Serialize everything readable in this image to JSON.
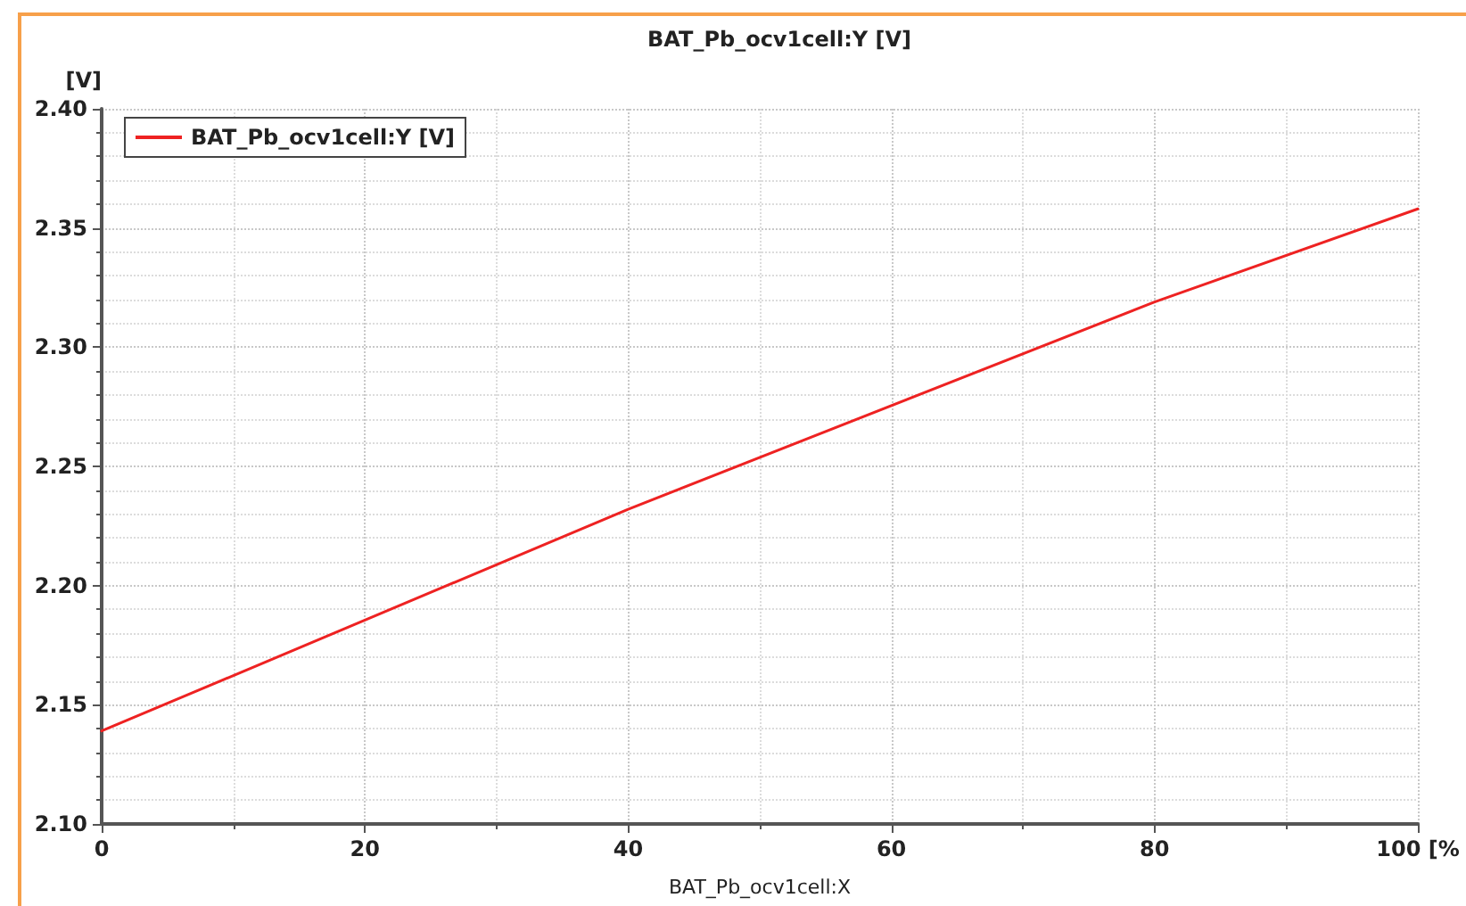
{
  "chart_data": {
    "type": "line",
    "title": "BAT_Pb_ocv1cell:Y [V]",
    "xlabel": "BAT_Pb_ocv1cell:X",
    "ylabel": "[V]",
    "x": [
      0,
      40,
      80,
      100
    ],
    "series": [
      {
        "name": "BAT_Pb_ocv1cell:Y [V]",
        "color": "#ee2222",
        "values": [
          2.139,
          2.232,
          2.319,
          2.358
        ]
      }
    ],
    "xlim": [
      0,
      100
    ],
    "xticks": [
      0,
      20,
      40,
      60,
      80,
      {
        "value": 100,
        "label": "100 [%"
      }
    ],
    "ylim": [
      2.1,
      2.4
    ],
    "yticks": [
      {
        "value": 2.1,
        "label": "2.10"
      },
      2.15,
      {
        "value": 2.2,
        "label": "2.20"
      },
      2.25,
      {
        "value": 2.3,
        "label": "2.30"
      },
      2.35,
      {
        "value": 2.4,
        "label": "2.40"
      }
    ],
    "grid": true,
    "legend": "top left",
    "marker": "none",
    "line_style": "solid"
  }
}
